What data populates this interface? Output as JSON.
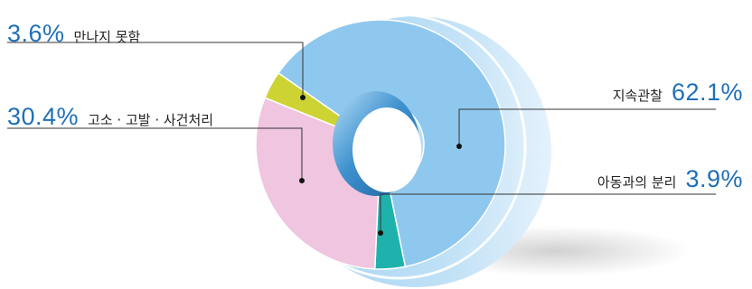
{
  "chart_data": {
    "type": "pie",
    "style": "3d-donut",
    "slices": [
      {
        "label": "지속관찰",
        "value": 62.1,
        "value_text": "62.1%",
        "color": "#8fc8ee"
      },
      {
        "label": "아동과의 분리",
        "value": 3.9,
        "value_text": "3.9%",
        "color": "#1fb2ad"
      },
      {
        "label": "고소 · 고발 · 사건처리",
        "value": 30.4,
        "value_text": "30.4%",
        "color": "#efc5df"
      },
      {
        "label": "만나지 못함",
        "value": 3.6,
        "value_text": "3.6%",
        "color": "#cdd332"
      }
    ]
  }
}
